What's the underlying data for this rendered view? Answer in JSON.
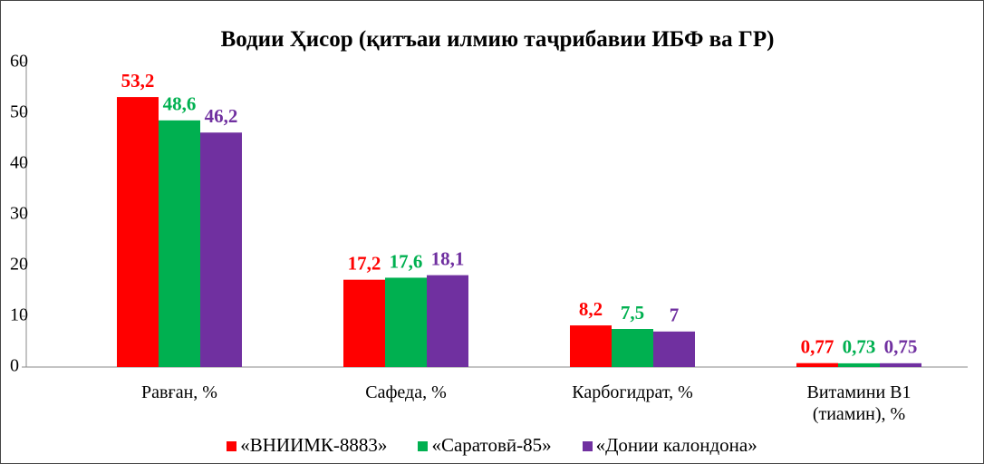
{
  "chart_data": {
    "type": "bar",
    "title": "Водии Ҳисор (қитъаи илмию таҷрибавии ИБФ ва ГР)",
    "categories": [
      "Равған, %",
      "Сафеда, %",
      "Карбогидрат, %",
      "Витамини B1 (тиамин), %"
    ],
    "series": [
      {
        "name": "«ВНИИМК-8883»",
        "color": "#ff0000",
        "values": [
          53.2,
          17.2,
          8.2,
          0.77
        ],
        "value_labels": [
          "53,2",
          "17,2",
          "8,2",
          "0,77"
        ]
      },
      {
        "name": "«Саратовӣ-85»",
        "color": "#00b050",
        "values": [
          48.6,
          17.6,
          7.5,
          0.73
        ],
        "value_labels": [
          "48,6",
          "17,6",
          "7,5",
          "0,73"
        ]
      },
      {
        "name": "«Донии калондона»",
        "color": "#7030a0",
        "values": [
          46.2,
          18.1,
          7,
          0.75
        ],
        "value_labels": [
          "46,2",
          "18,1",
          "7",
          "0,75"
        ]
      }
    ],
    "ylim": [
      0,
      60
    ],
    "yticks": [
      0,
      10,
      20,
      30,
      40,
      50,
      60
    ],
    "grid": false,
    "legend": "bottom"
  }
}
